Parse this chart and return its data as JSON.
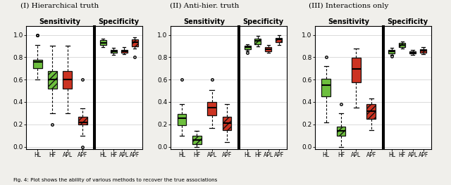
{
  "panel_titles": [
    "(I) Hierarchical truth",
    "(II) Anti-hier. truth",
    "(III) Interactions only"
  ],
  "x_labels": [
    "HL",
    "HF",
    "APL",
    "APF"
  ],
  "fig_bg": "#f0efeb",
  "panels": [
    {
      "sensitivity": {
        "HL": {
          "q1": 0.7,
          "median": 0.755,
          "q3": 0.78,
          "whislo": 0.6,
          "whishi": 0.91,
          "fliers": [
            1.0,
            1.0
          ]
        },
        "HF": {
          "q1": 0.52,
          "median": 0.6,
          "q3": 0.675,
          "whislo": 0.3,
          "whishi": 0.9,
          "fliers": [
            0.2
          ]
        },
        "APL": {
          "q1": 0.52,
          "median": 0.6,
          "q3": 0.675,
          "whislo": 0.3,
          "whishi": 0.9,
          "fliers": []
        },
        "APF": {
          "q1": 0.2,
          "median": 0.22,
          "q3": 0.265,
          "whislo": 0.1,
          "whishi": 0.34,
          "fliers": [
            0.0,
            0.6
          ]
        }
      },
      "specificity": {
        "HL": {
          "q1": 0.91,
          "median": 0.928,
          "q3": 0.95,
          "whislo": 0.893,
          "whishi": 0.963,
          "fliers": []
        },
        "HF": {
          "q1": 0.838,
          "median": 0.853,
          "q3": 0.868,
          "whislo": 0.82,
          "whishi": 0.883,
          "fliers": []
        },
        "APL": {
          "q1": 0.838,
          "median": 0.853,
          "q3": 0.868,
          "whislo": 0.826,
          "whishi": 0.892,
          "fliers": []
        },
        "APF": {
          "q1": 0.898,
          "median": 0.932,
          "q3": 0.958,
          "whislo": 0.875,
          "whishi": 0.977,
          "fliers": [
            0.8
          ]
        }
      }
    },
    {
      "sensitivity": {
        "HL": {
          "q1": 0.19,
          "median": 0.255,
          "q3": 0.29,
          "whislo": 0.098,
          "whishi": 0.378,
          "fliers": [
            0.6
          ]
        },
        "HF": {
          "q1": 0.02,
          "median": 0.06,
          "q3": 0.1,
          "whislo": 0.0,
          "whishi": 0.14,
          "fliers": []
        },
        "APL": {
          "q1": 0.28,
          "median": 0.348,
          "q3": 0.402,
          "whislo": 0.168,
          "whishi": 0.508,
          "fliers": [
            0.6
          ]
        },
        "APF": {
          "q1": 0.148,
          "median": 0.21,
          "q3": 0.27,
          "whislo": 0.038,
          "whishi": 0.378,
          "fliers": []
        }
      },
      "specificity": {
        "HL": {
          "q1": 0.872,
          "median": 0.888,
          "q3": 0.905,
          "whislo": 0.858,
          "whishi": 0.918,
          "fliers": [
            0.84
          ]
        },
        "HF": {
          "q1": 0.918,
          "median": 0.948,
          "q3": 0.965,
          "whislo": 0.895,
          "whishi": 0.992,
          "fliers": []
        },
        "APL": {
          "q1": 0.852,
          "median": 0.872,
          "q3": 0.892,
          "whislo": 0.838,
          "whishi": 0.908,
          "fliers": []
        },
        "APF": {
          "q1": 0.932,
          "median": 0.958,
          "q3": 0.975,
          "whislo": 0.908,
          "whishi": 0.994,
          "fliers": []
        }
      }
    },
    {
      "sensitivity": {
        "HL": {
          "q1": 0.448,
          "median": 0.548,
          "q3": 0.61,
          "whislo": 0.218,
          "whishi": 0.718,
          "fliers": [
            0.8
          ]
        },
        "HF": {
          "q1": 0.098,
          "median": 0.14,
          "q3": 0.178,
          "whislo": 0.0,
          "whishi": 0.298,
          "fliers": [
            0.378
          ]
        },
        "APL": {
          "q1": 0.578,
          "median": 0.698,
          "q3": 0.798,
          "whislo": 0.348,
          "whishi": 0.878,
          "fliers": []
        },
        "APF": {
          "q1": 0.248,
          "median": 0.318,
          "q3": 0.378,
          "whislo": 0.148,
          "whishi": 0.428,
          "fliers": []
        }
      },
      "specificity": {
        "HL": {
          "q1": 0.832,
          "median": 0.852,
          "q3": 0.868,
          "whislo": 0.818,
          "whishi": 0.885,
          "fliers": [
            0.808
          ]
        },
        "HF": {
          "q1": 0.892,
          "median": 0.908,
          "q3": 0.928,
          "whislo": 0.878,
          "whishi": 0.942,
          "fliers": []
        },
        "APL": {
          "q1": 0.832,
          "median": 0.842,
          "q3": 0.852,
          "whislo": 0.818,
          "whishi": 0.862,
          "fliers": []
        },
        "APF": {
          "q1": 0.842,
          "median": 0.858,
          "q3": 0.872,
          "whislo": 0.828,
          "whishi": 0.888,
          "fliers": []
        }
      }
    }
  ],
  "box_styles": {
    "HL": {
      "facecolor": "#6dbf3e",
      "hatch": null,
      "edgecolor": "#111111"
    },
    "HF": {
      "facecolor": "#6dbf3e",
      "hatch": "////",
      "edgecolor": "#111111"
    },
    "APL": {
      "facecolor": "#cc3322",
      "hatch": null,
      "edgecolor": "#111111"
    },
    "APF": {
      "facecolor": "#cc3322",
      "hatch": "////",
      "edgecolor": "#111111"
    }
  },
  "ylim": [
    -0.02,
    1.08
  ],
  "yticks": [
    0.0,
    0.2,
    0.4,
    0.6,
    0.8,
    1.0
  ],
  "caption": "Fig. 4: Plot shows the ability of various methods to recover the true associations"
}
